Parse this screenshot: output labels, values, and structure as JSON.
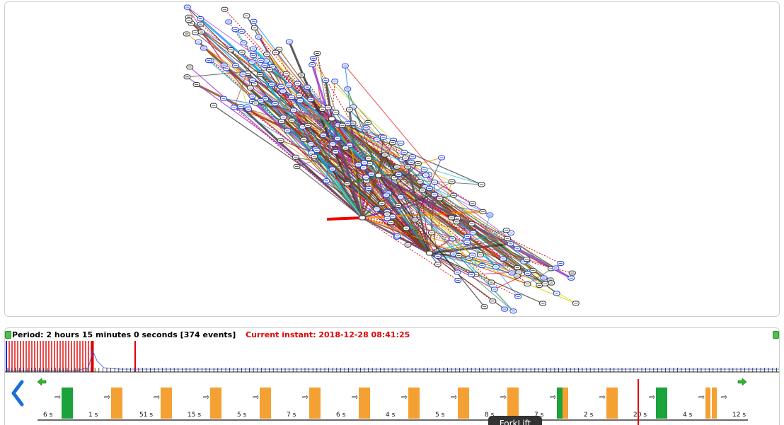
{
  "timeline": {
    "period_text": "Period: 2 hours 15 minutes 0 seconds [374 events]",
    "instant_text": "Current instant: 2018-12-28 08:41:25",
    "duration_labels": [
      "6 s",
      "1 s",
      "51 s",
      "15 s",
      "5 s",
      "7 s",
      "6 s",
      "4 s",
      "5 s",
      "8 s",
      "7 s",
      "2 s",
      "20 s",
      "4 s",
      "12 s"
    ],
    "segment_colors": [
      "green",
      "orange",
      "orange",
      "orange",
      "orange",
      "orange",
      "orange",
      "orange",
      "orange",
      "orange",
      "green-orange",
      "orange",
      "green",
      "orange-double"
    ],
    "tooltip": "ForkLift"
  },
  "icons": {
    "prev": "chevron-left-icon",
    "step_back": "green-arrow-left-icon",
    "step_forward": "green-arrow-right-icon",
    "sequence_arrow": "arrow-right-icon",
    "corner_left": "green-plus-icon",
    "corner_right": "green-plus-icon"
  },
  "colors": {
    "green": "#1aa33a",
    "orange": "#f5a033",
    "marker_red": "#e00000",
    "node_blue": "#2040e0"
  }
}
